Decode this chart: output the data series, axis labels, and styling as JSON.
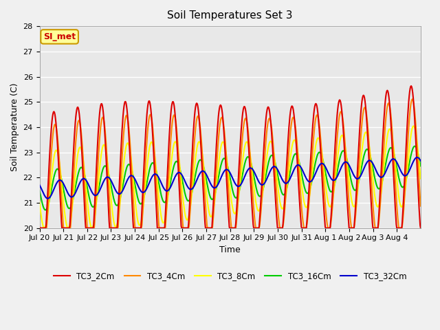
{
  "title": "Soil Temperatures Set 3",
  "xlabel": "Time",
  "ylabel": "Soil Temperature (C)",
  "ylim": [
    20.0,
    28.0
  ],
  "yticks": [
    20.0,
    21.0,
    22.0,
    23.0,
    24.0,
    25.0,
    26.0,
    27.0,
    28.0
  ],
  "xtick_labels": [
    "Jul 20",
    "Jul 21",
    "Jul 22",
    "Jul 23",
    "Jul 24",
    "Jul 25",
    "Jul 26",
    "Jul 27",
    "Jul 28",
    "Jul 29",
    "Jul 30",
    "Jul 31",
    "Aug 1",
    "Aug 2",
    "Aug 3",
    "Aug 4"
  ],
  "series": {
    "TC3_2Cm": {
      "color": "#dd0000",
      "linewidth": 1.5
    },
    "TC3_4Cm": {
      "color": "#ff8800",
      "linewidth": 1.5
    },
    "TC3_8Cm": {
      "color": "#ffff00",
      "linewidth": 1.5
    },
    "TC3_16Cm": {
      "color": "#00cc00",
      "linewidth": 1.5
    },
    "TC3_32Cm": {
      "color": "#0000cc",
      "linewidth": 1.5
    }
  },
  "fig_bg_color": "#f0f0f0",
  "plot_bg_color": "#e8e8e8",
  "annotation_text": "SI_met",
  "annotation_color": "#cc0000",
  "annotation_bg": "#ffff99",
  "annotation_border": "#cc9900",
  "n_days": 16,
  "samples_per_day": 48
}
